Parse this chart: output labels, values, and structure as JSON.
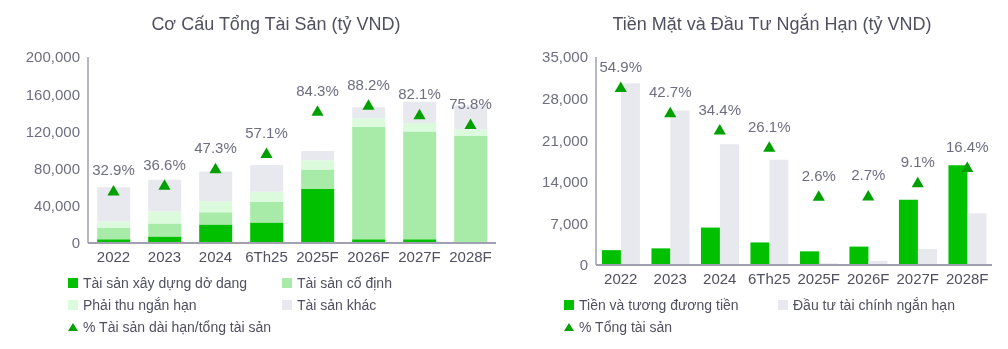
{
  "chart_data": [
    {
      "type": "bar",
      "title": "Cơ Cấu Tổng Tài Sản (tỷ VND)",
      "stacked": true,
      "legend": "bottom",
      "categories": [
        "2022",
        "2023",
        "2024",
        "6Th25",
        "2025F",
        "2026F",
        "2027F",
        "2028F"
      ],
      "ylim": [
        0,
        200000
      ],
      "yticks": [
        0,
        {
          "value": 40000,
          "label": "40,000"
        },
        {
          "value": 80000,
          "label": "80,000"
        },
        {
          "value": 120000,
          "label": "120,000"
        },
        {
          "value": 160000,
          "label": "160,000"
        },
        {
          "value": 200000,
          "label": "200,000"
        }
      ],
      "y2lim": [
        0,
        120
      ],
      "series": [
        {
          "name": "Tài sản xây dựng dở dang",
          "color": "#00c000",
          "values": [
            4000,
            7000,
            20000,
            22000,
            58000,
            4000,
            4000,
            1000
          ]
        },
        {
          "name": "Tài sản cố định",
          "color": "#a8eba8",
          "values": [
            12000,
            14000,
            13000,
            22000,
            21000,
            121000,
            116000,
            114000
          ]
        },
        {
          "name": "Phải thu ngắn hạn",
          "color": "#dcfadc",
          "values": [
            7000,
            13000,
            12000,
            11000,
            10000,
            9000,
            9000,
            7000
          ]
        },
        {
          "name": "Tài sản khác",
          "color": "#e8e9ee",
          "values": [
            37000,
            34000,
            32000,
            29000,
            10000,
            12000,
            23000,
            26000
          ]
        },
        {
          "name": "% Tài sản dài hạn/tổng tài sản",
          "type": "scatter",
          "axis": "y2",
          "marker": "triangle",
          "color": "#00a000",
          "values": [
            32.9,
            36.6,
            47.3,
            57.1,
            84.3,
            88.2,
            82.1,
            75.8
          ],
          "value_labels": [
            "32.9%",
            "36.6%",
            "47.3%",
            "57.1%",
            "84.3%",
            "88.2%",
            "82.1%",
            "75.8%"
          ]
        }
      ]
    },
    {
      "type": "bar",
      "title": "Tiền Mặt và Đầu Tư Ngắn Hạn (tỷ VND)",
      "legend": "bottom",
      "categories": [
        "2022",
        "2023",
        "2024",
        "6Th25",
        "2025F",
        "2026F",
        "2027F",
        "2028F"
      ],
      "ylim": [
        0,
        35000
      ],
      "yticks": [
        0,
        {
          "value": 7000,
          "label": "7,000"
        },
        {
          "value": 14000,
          "label": "14,000"
        },
        {
          "value": 21000,
          "label": "21,000"
        },
        {
          "value": 28000,
          "label": "28,000"
        },
        {
          "value": 35000,
          "label": "35,000"
        }
      ],
      "y2lim": [
        -30,
        70
      ],
      "series": [
        {
          "name": "Tiền và tương đương tiền",
          "color": "#00c000",
          "values": [
            2500,
            2800,
            6300,
            3800,
            2300,
            3100,
            11000,
            16800
          ]
        },
        {
          "name": "Đầu tư tài chính ngắn hạn",
          "color": "#e8e9ee",
          "values": [
            30600,
            26000,
            20300,
            17700,
            300,
            700,
            2700,
            8700
          ]
        },
        {
          "name": "% Tổng tài sản",
          "type": "scatter",
          "axis": "y2",
          "marker": "triangle",
          "color": "#00a000",
          "values": [
            54.9,
            42.7,
            34.4,
            26.1,
            2.6,
            2.7,
            9.1,
            16.4
          ],
          "value_labels": [
            "54.9%",
            "42.7%",
            "34.4%",
            "26.1%",
            "2.6%",
            "2.7%",
            "9.1%",
            "16.4%"
          ]
        }
      ]
    }
  ]
}
